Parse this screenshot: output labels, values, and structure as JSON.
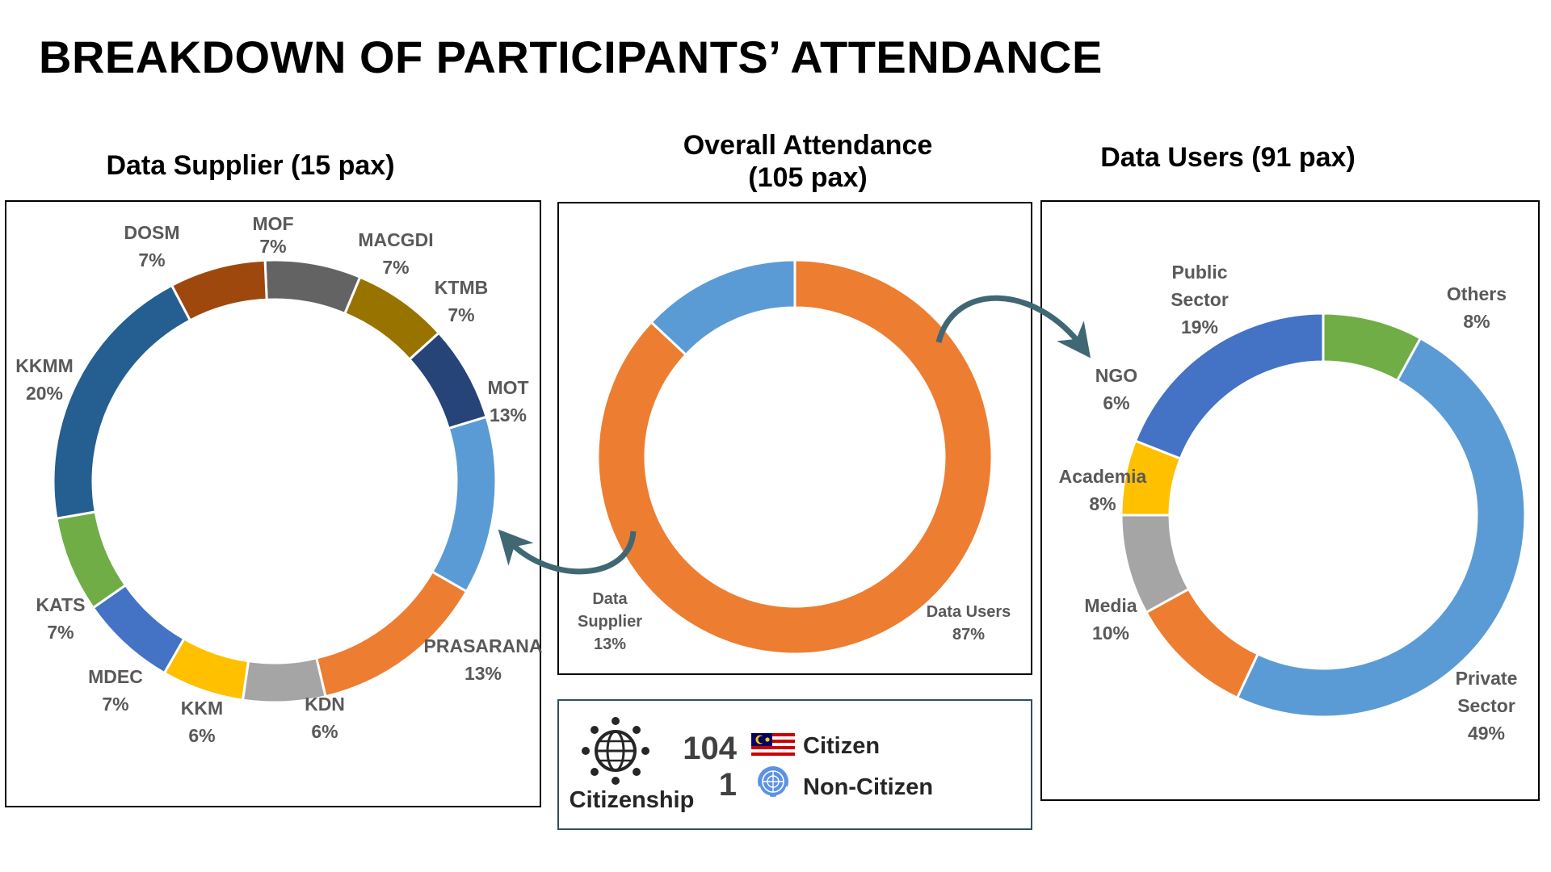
{
  "page": {
    "title": "BREAKDOWN OF PARTICIPANTS’ ATTENDANCE"
  },
  "chart_data": [
    {
      "id": "supplier",
      "type": "pie",
      "title": "Data Supplier (15 pax)",
      "start_category": "MOF",
      "slices": [
        {
          "label": "MOF",
          "value": 7,
          "value_label": "7%",
          "color": "#636363"
        },
        {
          "label": "MACGDI",
          "value": 7,
          "value_label": "7%",
          "color": "#997300"
        },
        {
          "label": "KTMB",
          "value": 7,
          "value_label": "7%",
          "color": "#264478"
        },
        {
          "label": "MOT",
          "value": 13,
          "value_label": "13%",
          "color": "#5b9bd5"
        },
        {
          "label": "PRASARANA",
          "value": 13,
          "value_label": "13%",
          "color": "#ed7d31"
        },
        {
          "label": "KDN",
          "value": 6,
          "value_label": "6%",
          "color": "#a5a5a5"
        },
        {
          "label": "KKM",
          "value": 6,
          "value_label": "6%",
          "color": "#ffc000"
        },
        {
          "label": "MDEC",
          "value": 7,
          "value_label": "7%",
          "color": "#4472c4"
        },
        {
          "label": "KATS",
          "value": 7,
          "value_label": "7%",
          "color": "#70ad47"
        },
        {
          "label": "KKMM",
          "value": 20,
          "value_label": "20%",
          "color": "#255e91"
        },
        {
          "label": "DOSM",
          "value": 7,
          "value_label": "7%",
          "color": "#9e480e"
        }
      ]
    },
    {
      "id": "overall",
      "type": "pie",
      "title": "Overall Attendance (105 pax)",
      "start_category": "Data Users",
      "slices": [
        {
          "label": "Data Users",
          "value": 87,
          "value_label": "87%",
          "color": "#ed7d31"
        },
        {
          "label": "Data Supplier",
          "value": 13,
          "value_label": "13%",
          "color": "#5b9bd5"
        }
      ]
    },
    {
      "id": "users",
      "type": "pie",
      "title": "Data Users (91 pax)",
      "start_category": "Others",
      "slices": [
        {
          "label": "Others",
          "value": 8,
          "value_label": "8%",
          "color": "#70ad47"
        },
        {
          "label": "Private Sector",
          "value": 49,
          "value_label": "49%",
          "color": "#5b9bd5"
        },
        {
          "label": "Media",
          "value": 10,
          "value_label": "10%",
          "color": "#ed7d31"
        },
        {
          "label": "Academia",
          "value": 8,
          "value_label": "8%",
          "color": "#a5a5a5"
        },
        {
          "label": "NGO",
          "value": 6,
          "value_label": "6%",
          "color": "#ffc000"
        },
        {
          "label": "Public Sector",
          "value": 19,
          "value_label": "19%",
          "color": "#4472c4"
        }
      ]
    }
  ],
  "citizenship": {
    "label": "Citizenship",
    "citizen": {
      "count": "104",
      "label": "Citizen"
    },
    "non_citizen": {
      "count": "1",
      "label": "Non-Citizen"
    },
    "icons": {
      "globe": "globe-people-icon",
      "citizen_flag": "malaysia-flag-icon",
      "non_citizen_flag": "un-emblem-icon"
    }
  }
}
